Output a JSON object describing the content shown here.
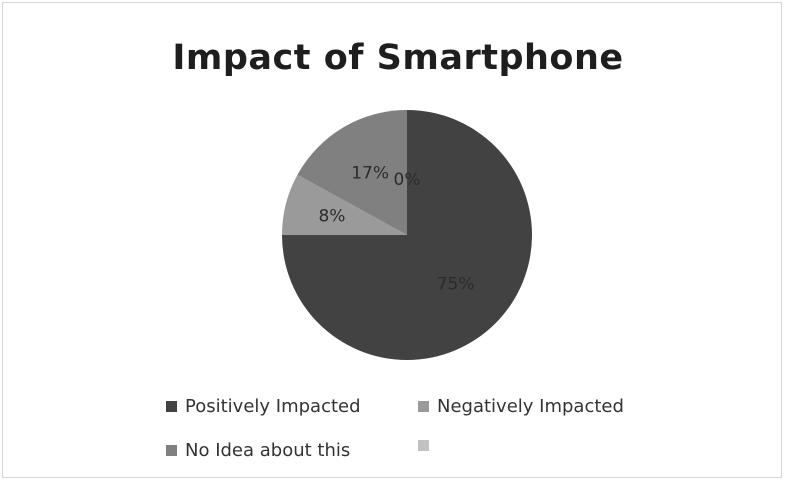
{
  "chart_data": {
    "type": "pie",
    "title": "Impact of Smartphone",
    "slices": [
      {
        "name": "Positively Impacted",
        "value": 75,
        "label": "75%",
        "color": "#424242"
      },
      {
        "name": "Negatively Impacted",
        "value": 8,
        "label": "8%",
        "color": "#9a9a9a"
      },
      {
        "name": "No Idea about this",
        "value": 17,
        "label": "17%",
        "color": "#808080"
      },
      {
        "name": "",
        "value": 0,
        "label": "0%",
        "color": "#c2c2c2"
      }
    ],
    "legend_position": "bottom"
  }
}
